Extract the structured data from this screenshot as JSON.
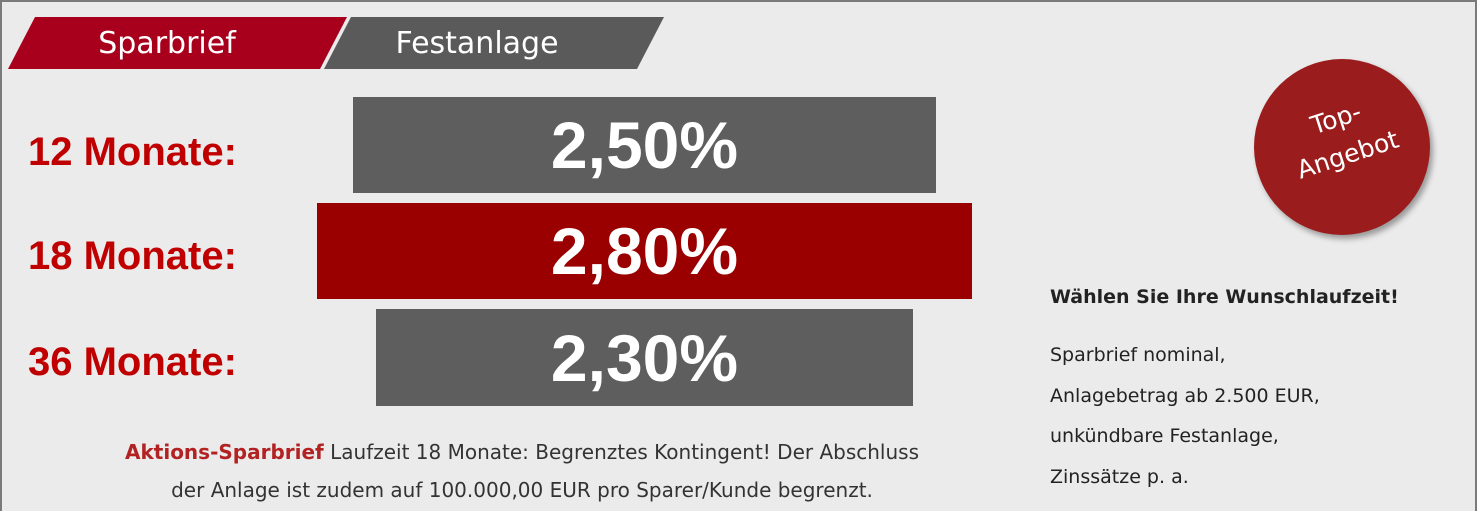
{
  "tabs": [
    "Sparbrief",
    "Festanlage"
  ],
  "rates": [
    {
      "label": "12 Monate:",
      "value": "2,50%"
    },
    {
      "label": "18 Monate:",
      "value": "2,80%"
    },
    {
      "label": "36 Monate:",
      "value": "2,30%"
    }
  ],
  "badge": {
    "line1": "Top-",
    "line2": "Angebot"
  },
  "note": {
    "highlight": "Aktions-Sparbrief",
    "line1": " Laufzeit 18 Monate: Begrenztes Kontingent! Der Abschluss",
    "line2": "der Anlage ist zudem auf 100.000,00 EUR pro Sparer/Kunde begrenzt."
  },
  "side": {
    "heading": "Wählen Sie Ihre Wunschlaufzeit!",
    "lines": [
      "Sparbrief nominal,",
      "Anlagebetrag ab 2.500 EUR,",
      "unkündbare Festanlage,",
      "Zinssätze p. a."
    ]
  }
}
